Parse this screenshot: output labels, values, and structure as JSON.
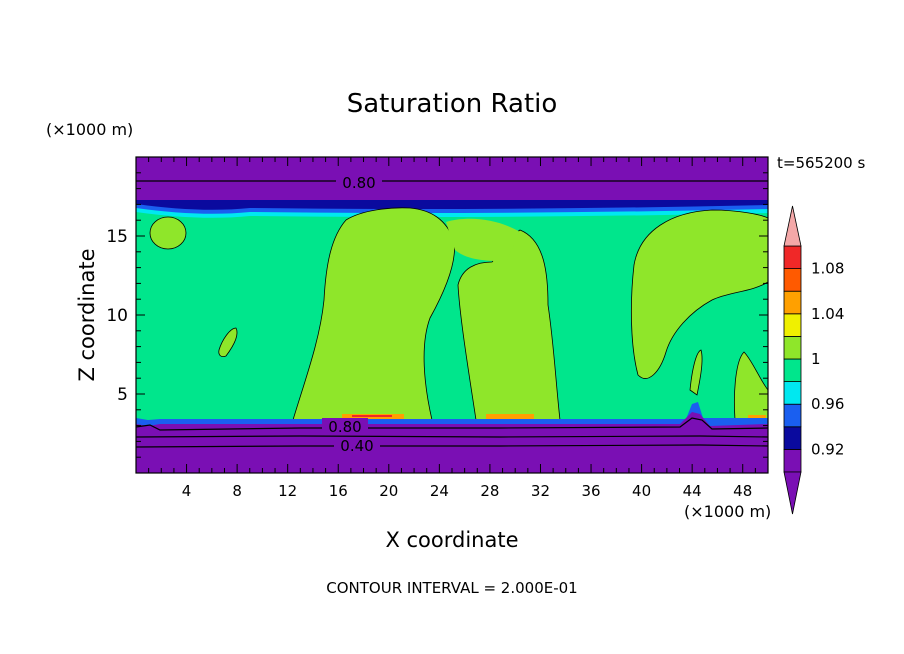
{
  "chart_data": {
    "type": "heatmap",
    "title": "Saturation Ratio",
    "xlabel": "X coordinate",
    "ylabel": "Z coordinate",
    "x_unit": "(×1000 m)",
    "y_unit": "(×1000 m)",
    "time_label": "t=565200 s",
    "footer": "CONTOUR INTERVAL = 2.000E-01",
    "xlim": [
      0,
      50
    ],
    "ylim": [
      0,
      20
    ],
    "x_ticks": [
      4,
      8,
      12,
      16,
      20,
      24,
      28,
      32,
      36,
      40,
      44,
      48
    ],
    "y_ticks": [
      5,
      10,
      15
    ],
    "contour_labels": [
      "0.80",
      "0.80",
      "0.40"
    ],
    "colorbar": {
      "labels": [
        "0.92",
        "0.96",
        "1",
        "1.04",
        "1.08"
      ],
      "levels": [
        0.9,
        0.92,
        0.94,
        0.96,
        0.98,
        1.0,
        1.02,
        1.04,
        1.06,
        1.08,
        1.1
      ],
      "colors": [
        "#7a0fb4",
        "#0a0a9e",
        "#1a5ff0",
        "#00e8f0",
        "#00e68c",
        "#8fe62a",
        "#f0f000",
        "#ffa000",
        "#ff5a00",
        "#f02828"
      ],
      "over_color": "#f4a8a8",
      "under_color": "#7a0fb4"
    },
    "regions": [
      {
        "name": "band-top",
        "level": "<0.90"
      },
      {
        "name": "band-low",
        "level": "<0.90"
      },
      {
        "name": "field",
        "level": "0.98-1.00"
      },
      {
        "name": "plume-left",
        "level": "1.00-1.02"
      },
      {
        "name": "plume-right",
        "level": "1.00-1.02"
      }
    ]
  }
}
